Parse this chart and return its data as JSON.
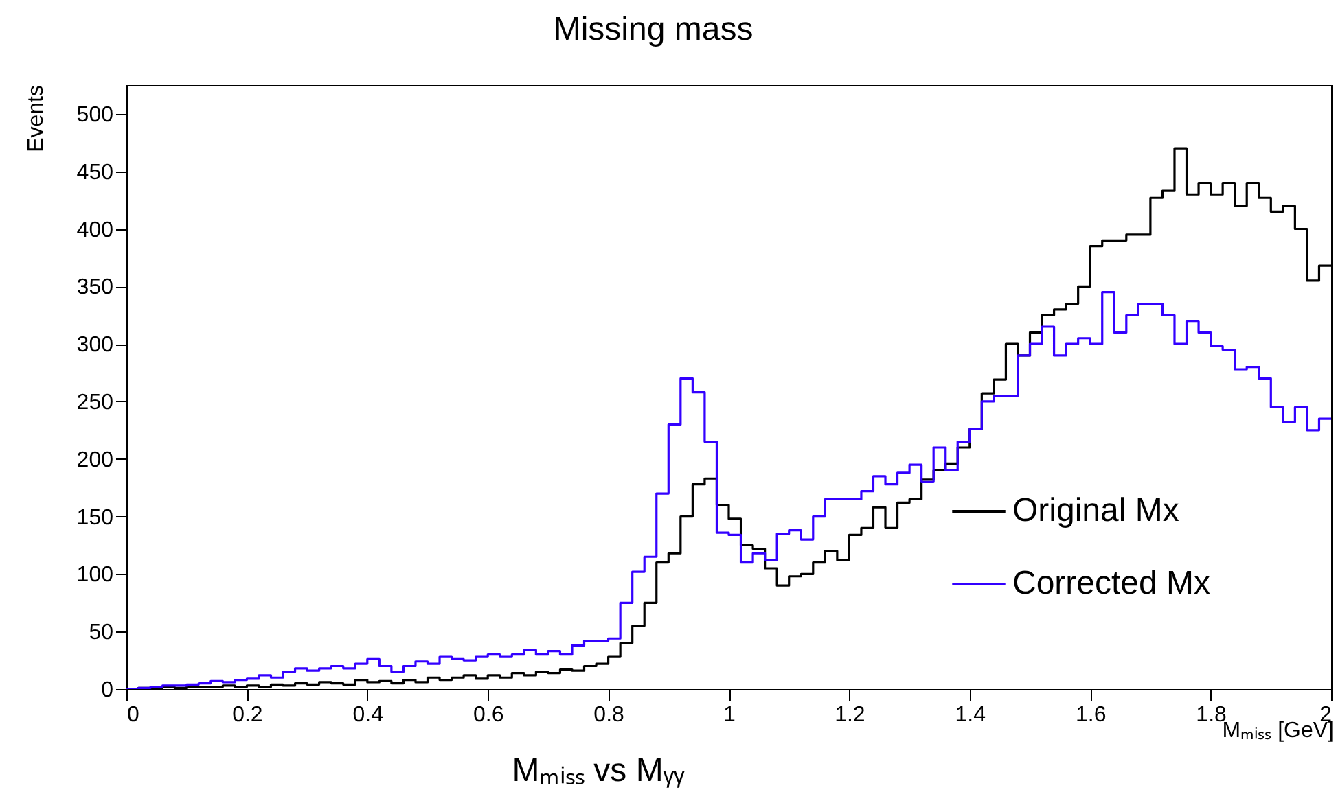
{
  "chart_data": {
    "type": "histogram",
    "title": "Missing mass",
    "xlabel": "Mₘᵢₛₛ [GeV]",
    "ylabel": "Events",
    "annotations": [
      "Mₘᵢₛₛ vs Mᵧᵧ"
    ],
    "bins": [
      0,
      0.02,
      0.04,
      0.06,
      0.08,
      0.1,
      0.12,
      0.14,
      0.16,
      0.18,
      0.2,
      0.22,
      0.24,
      0.26,
      0.28,
      0.3,
      0.32,
      0.34,
      0.36,
      0.38,
      0.4,
      0.42,
      0.44,
      0.46,
      0.48,
      0.5,
      0.52,
      0.54,
      0.56,
      0.58,
      0.6,
      0.62,
      0.64,
      0.66,
      0.68,
      0.7,
      0.72,
      0.74,
      0.76,
      0.78,
      0.8,
      0.82,
      0.84,
      0.86,
      0.88,
      0.9,
      0.92,
      0.94,
      0.96,
      0.98,
      1,
      1.02,
      1.04,
      1.06,
      1.08,
      1.1,
      1.12,
      1.14,
      1.16,
      1.18,
      1.2,
      1.22,
      1.24,
      1.26,
      1.28,
      1.3,
      1.32,
      1.34,
      1.36,
      1.38,
      1.4,
      1.42,
      1.44,
      1.46,
      1.48,
      1.5,
      1.52,
      1.54,
      1.56,
      1.58,
      1.6,
      1.62,
      1.64,
      1.66,
      1.68,
      1.7,
      1.72,
      1.74,
      1.76,
      1.78,
      1.8,
      1.82,
      1.84,
      1.86,
      1.88,
      1.9,
      1.92,
      1.94,
      1.96,
      1.98,
      2
    ],
    "series": [
      {
        "name": "Original Mx",
        "color": "#000000",
        "values": [
          0,
          1,
          1,
          2,
          1,
          2,
          2,
          2,
          3,
          2,
          3,
          2,
          4,
          3,
          5,
          4,
          6,
          5,
          4,
          8,
          6,
          7,
          5,
          8,
          6,
          10,
          8,
          10,
          12,
          9,
          12,
          10,
          14,
          12,
          15,
          14,
          17,
          16,
          20,
          22,
          28,
          40,
          55,
          75,
          110,
          118,
          150,
          178,
          183,
          160,
          148,
          125,
          122,
          105,
          90,
          98,
          100,
          110,
          120,
          112,
          134,
          140,
          158,
          140,
          162,
          165,
          182,
          190,
          196,
          210,
          226,
          257,
          269,
          300,
          290,
          310,
          325,
          330,
          335,
          350,
          385,
          390,
          390,
          395,
          395,
          427,
          433,
          470,
          430,
          440,
          430,
          440,
          420,
          440,
          427,
          415,
          420,
          400,
          355,
          368
        ]
      },
      {
        "name": "Corrected Mx",
        "color": "#3300ff",
        "values": [
          0,
          1,
          2,
          3,
          3,
          4,
          5,
          7,
          6,
          8,
          9,
          12,
          10,
          15,
          18,
          16,
          18,
          20,
          18,
          22,
          26,
          20,
          15,
          20,
          24,
          22,
          28,
          26,
          25,
          28,
          30,
          28,
          30,
          34,
          30,
          33,
          30,
          38,
          42,
          42,
          44,
          75,
          102,
          115,
          170,
          230,
          270,
          258,
          215,
          136,
          134,
          110,
          118,
          112,
          135,
          138,
          130,
          150,
          165,
          165,
          165,
          172,
          185,
          178,
          188,
          195,
          180,
          210,
          190,
          215,
          226,
          250,
          255,
          255,
          290,
          300,
          315,
          290,
          300,
          305,
          300,
          345,
          310,
          325,
          335,
          335,
          325,
          300,
          320,
          310,
          298,
          295,
          278,
          280,
          270,
          245,
          232,
          245,
          225,
          235
        ]
      }
    ],
    "xlim": [
      0,
      2
    ],
    "xticks": [
      0,
      0.2,
      0.4,
      0.6,
      0.8,
      1,
      1.2,
      1.4,
      1.6,
      1.8,
      2
    ],
    "ylim": [
      0,
      525
    ],
    "yticks": [
      0,
      50,
      100,
      150,
      200,
      250,
      300,
      350,
      400,
      450,
      500
    ],
    "grid": false,
    "legend": "right"
  }
}
